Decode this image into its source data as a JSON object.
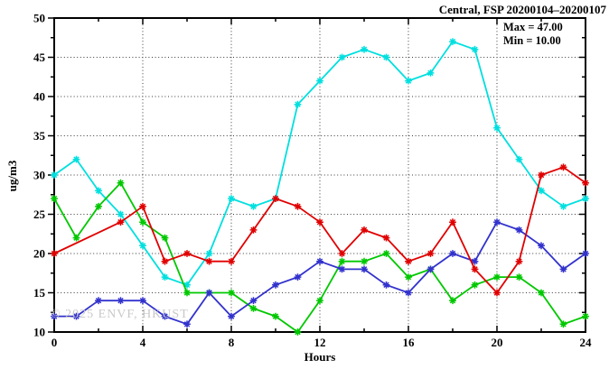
{
  "header": {
    "title": "Central, FSP 20200104–20200107"
  },
  "annotations": {
    "max_label": "Max = 47.00",
    "min_label": "Min = 10.00"
  },
  "watermark": "© 2025 ENVF, HKUST",
  "axes": {
    "ylabel": "ug/m3",
    "xlabel": "Hours"
  },
  "chart_data": {
    "type": "line",
    "title": "Central, FSP 20200104-20200107",
    "xlabel": "Hours",
    "ylabel": "ug/m3",
    "xlim": [
      0,
      24
    ],
    "ylim": [
      10,
      50
    ],
    "xticks": [
      0,
      4,
      8,
      12,
      16,
      20,
      24
    ],
    "xtick_minor_step": 2,
    "yticks": [
      10,
      15,
      20,
      25,
      30,
      35,
      40,
      45,
      50
    ],
    "ytick_minor_step": 2.5,
    "grid": {
      "style": "dotted",
      "x_at": [
        4,
        8,
        12,
        16,
        20
      ],
      "y_at": [
        15,
        20,
        25,
        30,
        35,
        40,
        45
      ]
    },
    "legend_position": "none",
    "stats": {
      "max": 47.0,
      "min": 10.0
    },
    "x": [
      0,
      1,
      2,
      3,
      4,
      5,
      6,
      7,
      8,
      9,
      10,
      11,
      12,
      13,
      14,
      15,
      16,
      17,
      18,
      19,
      20,
      21,
      22,
      23,
      24
    ],
    "series": [
      {
        "name": "cyan",
        "color": "#00dfdf",
        "values": [
          30,
          32,
          28,
          25,
          21,
          17,
          16,
          20,
          27,
          26,
          27,
          39,
          42,
          45,
          46,
          45,
          42,
          43,
          47,
          46,
          36,
          32,
          28,
          26,
          27
        ]
      },
      {
        "name": "green",
        "color": "#00c800",
        "values": [
          27,
          22,
          26,
          29,
          24,
          22,
          15,
          15,
          15,
          13,
          12,
          10,
          14,
          19,
          19,
          20,
          17,
          18,
          14,
          16,
          17,
          17,
          15,
          11,
          12
        ]
      },
      {
        "name": "blue",
        "color": "#3232cd",
        "values": [
          12,
          12,
          14,
          14,
          14,
          12,
          11,
          15,
          12,
          14,
          16,
          17,
          19,
          18,
          18,
          16,
          15,
          18,
          20,
          19,
          24,
          23,
          21,
          18,
          20
        ]
      },
      {
        "name": "red",
        "color": "#e00000",
        "values": [
          20,
          null,
          null,
          24,
          26,
          19,
          20,
          19,
          19,
          23,
          27,
          26,
          24,
          20,
          23,
          22,
          19,
          20,
          24,
          18,
          15,
          19,
          30,
          31,
          29
        ]
      }
    ]
  }
}
